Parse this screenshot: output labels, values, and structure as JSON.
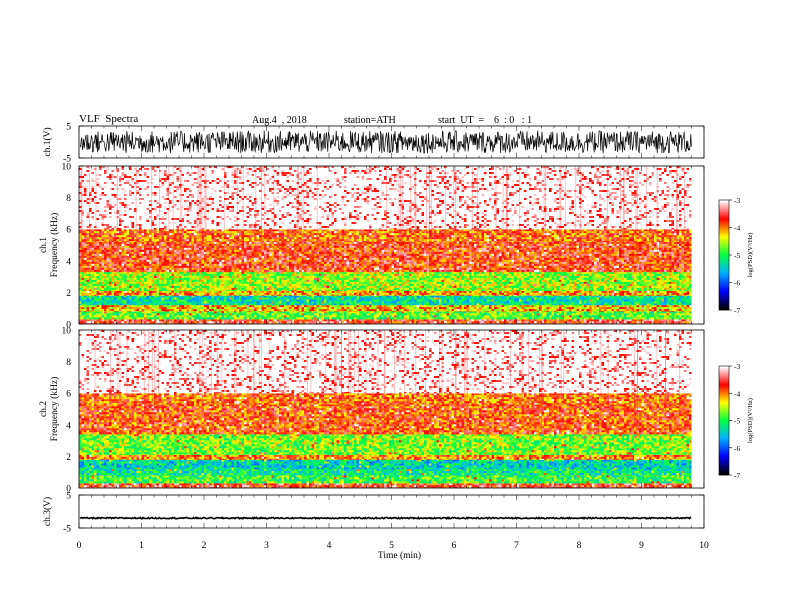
{
  "header": {
    "title": "VLF  Spectra",
    "date": "Aug.4  , 2018",
    "station": "station=ATH",
    "start": "start  UT  =    6  : 0   : 1"
  },
  "chart_data": [
    {
      "type": "line",
      "name": "ch1-waveform",
      "ylabel": "ch.1(V)",
      "ylim": [
        -5,
        5
      ],
      "yticks": [
        "5",
        "-5"
      ],
      "x_range_min": [
        0,
        9.8
      ],
      "description_values": {
        "amplitude_approx": 2.2,
        "center": 0
      }
    },
    {
      "type": "heatmap",
      "name": "ch1-spectrogram",
      "ylabel": "ch.1\nFrequency  (kHz)",
      "ylim": [
        0,
        10
      ],
      "yticks": [
        "0",
        "2",
        "4",
        "6",
        "8",
        "10"
      ],
      "x_range_min": [
        0,
        9.8
      ],
      "bands_khz": [
        {
          "from": 0,
          "to": 0.3,
          "level": -3.6
        },
        {
          "from": 0.3,
          "to": 0.8,
          "level": -4.8
        },
        {
          "from": 0.8,
          "to": 1.2,
          "level": -4.2
        },
        {
          "from": 1.2,
          "to": 1.8,
          "level": -5.3
        },
        {
          "from": 1.8,
          "to": 2.1,
          "level": -4.1
        },
        {
          "from": 2.1,
          "to": 3.3,
          "level": -4.6
        },
        {
          "from": 3.3,
          "to": 5.2,
          "level": -3.7
        },
        {
          "from": 5.2,
          "to": 6.0,
          "level": -3.9
        },
        {
          "from": 6.0,
          "to": 10,
          "level": -3.2
        }
      ],
      "colorbar": {
        "label": "log(PSD)(V²/Hz)",
        "ticks": [
          "-3",
          "-4",
          "-5",
          "-6",
          "-7"
        ],
        "range": [
          -7,
          -3
        ]
      }
    },
    {
      "type": "heatmap",
      "name": "ch2-spectrogram",
      "ylabel": "ch.2\nFrequency  (kHz)",
      "ylim": [
        0,
        10
      ],
      "yticks": [
        "0",
        "2",
        "4",
        "6",
        "8",
        "10"
      ],
      "x_range_min": [
        0,
        9.8
      ],
      "bands_khz": [
        {
          "from": 0,
          "to": 0.3,
          "level": -3.6
        },
        {
          "from": 0.3,
          "to": 0.8,
          "level": -4.9
        },
        {
          "from": 0.8,
          "to": 1.2,
          "level": -5.2
        },
        {
          "from": 1.2,
          "to": 1.8,
          "level": -5.4
        },
        {
          "from": 1.8,
          "to": 2.1,
          "level": -4.0
        },
        {
          "from": 2.1,
          "to": 3.4,
          "level": -4.7
        },
        {
          "from": 3.4,
          "to": 5.3,
          "level": -3.8
        },
        {
          "from": 5.3,
          "to": 6.0,
          "level": -3.9
        },
        {
          "from": 6.0,
          "to": 10,
          "level": -3.2
        }
      ],
      "colorbar": {
        "label": "log(PSD)(V²/Hz)",
        "ticks": [
          "-3",
          "-4",
          "-5",
          "-6",
          "-7"
        ],
        "range": [
          -7,
          -3
        ]
      }
    },
    {
      "type": "line",
      "name": "ch3-waveform",
      "ylabel": "ch.3(V)",
      "ylim": [
        -5,
        5
      ],
      "yticks": [
        "5",
        "-5"
      ],
      "x_range_min": [
        0,
        9.8
      ],
      "description_values": {
        "amplitude_approx": 0.2,
        "center": -2.0
      }
    }
  ],
  "x_axis": {
    "label": "Time  (min)",
    "ticks": [
      "0",
      "1",
      "2",
      "3",
      "4",
      "5",
      "6",
      "7",
      "8",
      "9",
      "10"
    ],
    "xlim": [
      0,
      10
    ]
  },
  "colors": {
    "colormap": [
      "#000000",
      "#0000ff",
      "#00b0ff",
      "#00ff40",
      "#ffff00",
      "#ff0000",
      "#ffffff"
    ]
  }
}
